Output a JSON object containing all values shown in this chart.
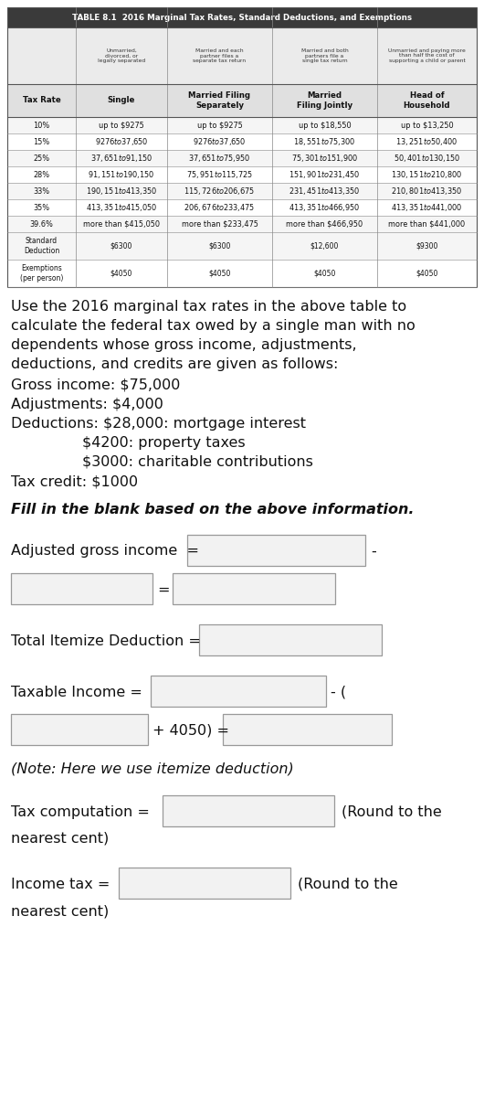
{
  "title": "TABLE 8.1  2016 Marginal Tax Rates, Standard Deductions, and Exemptions",
  "header_bg": "#3a3a3a",
  "header_text_color": "#ffffff",
  "desc_row_texts": [
    "Unmarried,\ndivorced, or\nlegally separated",
    "Married and each\npartner files a\nseparate tax return",
    "Married and both\npartners file a\nsingle tax return",
    "Unmarried and paying more\nthan half the cost of\nsupporting a child or parent"
  ],
  "col_headers": [
    "Tax Rate",
    "Single",
    "Married Filing\nSeparately",
    "Married\nFiling Jointly",
    "Head of\nHousehold"
  ],
  "rows": [
    [
      "10%",
      "up to $9275",
      "up to $9275",
      "up to $18,550",
      "up to $13,250"
    ],
    [
      "15%",
      "$9276 to $37,650",
      "$9276 to $37,650",
      "$18,551 to $75,300",
      "$13,251 to $50,400"
    ],
    [
      "25%",
      "$37,651 to $91,150",
      "$37,651 to $75,950",
      "$75,301 to $151,900",
      "$50,401 to $130,150"
    ],
    [
      "28%",
      "$91,151 to $190,150",
      "$75,951 to $115,725",
      "$151,901 to $231,450",
      "$130,151 to $210,800"
    ],
    [
      "33%",
      "$190,151 to $413,350",
      "$115,726 to $206,675",
      "$231,451 to $413,350",
      "$210,801 to $413,350"
    ],
    [
      "35%",
      "$413,351 to $415,050",
      "$206,676 to $233,475",
      "$413,351 to $466,950",
      "$413,351 to $441,000"
    ],
    [
      "39.6%",
      "more than $415,050",
      "more than $233,475",
      "more than $466,950",
      "more than $441,000"
    ],
    [
      "Standard\nDeduction",
      "$6300",
      "$6300",
      "$12,600",
      "$9300"
    ],
    [
      "Exemptions\n(per person)",
      "$4050",
      "$4050",
      "$4050",
      "$4050"
    ]
  ],
  "para1_lines": [
    "Use the 2016 marginal tax rates in the above table to",
    "calculate the federal tax owed by a single man with no",
    "dependents whose gross income, adjustments,",
    "deductions, and credits are given as follows:"
  ],
  "info_lines": [
    "Gross income: $75,000",
    "Adjustments: $4,000",
    "Deductions: $28,000: mortgage interest"
  ],
  "ded_indent_lines": [
    "$4200: property taxes",
    "$3000: charitable contributions"
  ],
  "tax_credit_line": "Tax credit: $1000",
  "fill_blank_line": "Fill in the blank based on the above information.",
  "box_fill": "#f2f2f2",
  "box_edge": "#999999",
  "bg_color": "#ffffff",
  "text_color": "#111111"
}
